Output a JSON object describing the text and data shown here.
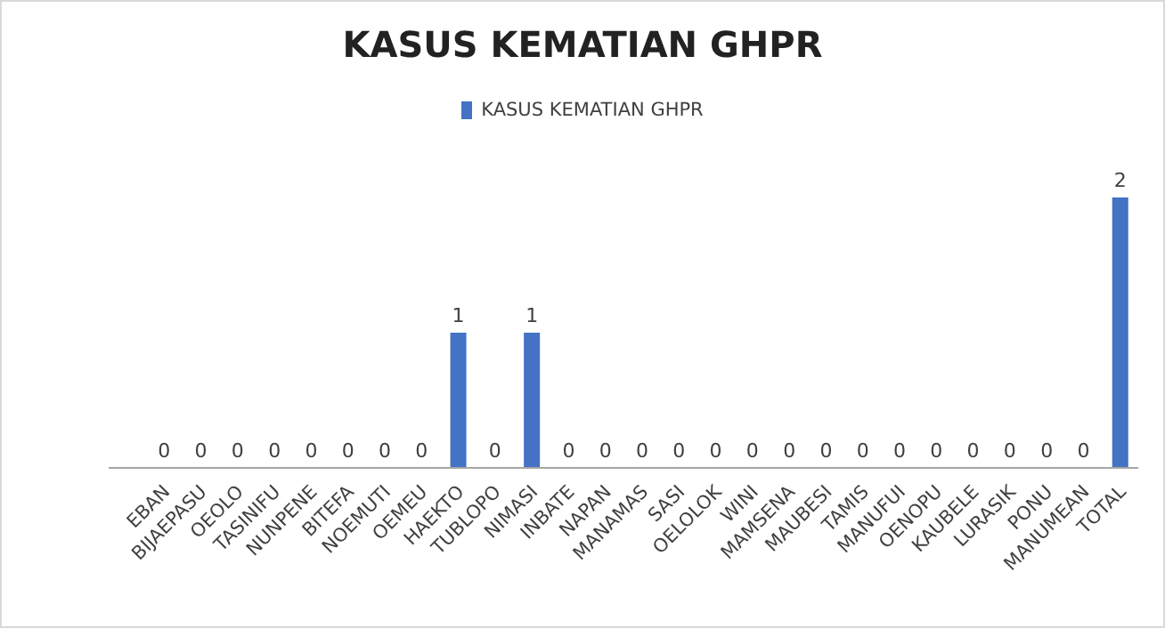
{
  "chart_data": {
    "type": "bar",
    "title": "KASUS KEMATIAN GHPR",
    "categories": [
      null,
      "EBAN",
      "BIJAEPASU",
      "OEOLO",
      "TASINIFU",
      "NUNPENE",
      "BITEFA",
      "NOEMUTI",
      "OEMEU",
      "HAEKTO",
      "TUBLOPO",
      "NIMASI",
      "INBATE",
      "NAPAN",
      "MANAMAS",
      "SASI",
      "OELOLOK",
      "WINI",
      "MAMSENA",
      "MAUBESI",
      "TAMIS",
      "MANUFUI",
      "OENOPU",
      "KAUBELE",
      "LURASIK",
      "PONU",
      "MANUMEAN",
      "TOTAL"
    ],
    "series": [
      {
        "name": "KASUS KEMATIAN GHPR",
        "color": "#4472c4",
        "values": [
          null,
          0,
          0,
          0,
          0,
          0,
          0,
          0,
          0,
          1,
          0,
          1,
          0,
          0,
          0,
          0,
          0,
          0,
          0,
          0,
          0,
          0,
          0,
          0,
          0,
          0,
          0,
          2
        ]
      }
    ],
    "data_labels": true,
    "legend": "top",
    "grid": false
  }
}
